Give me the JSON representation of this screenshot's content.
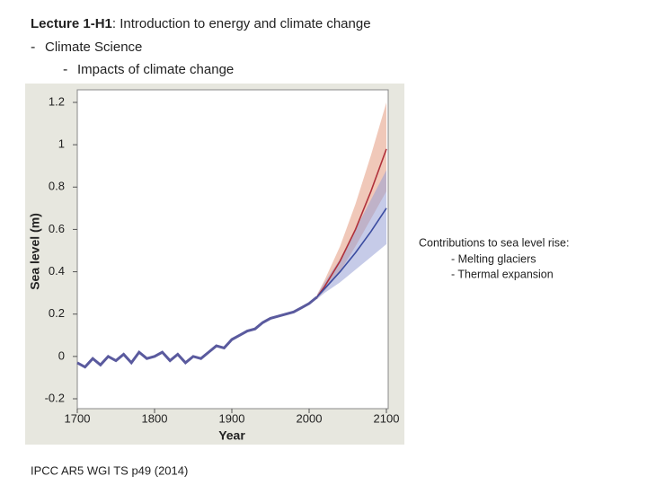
{
  "slide": {
    "title_bold": "Lecture 1-H1",
    "title_rest": ": Introduction to energy and climate change",
    "bullets": [
      {
        "marker": "-",
        "text": "Climate Science"
      },
      {
        "marker": "-",
        "text": "Impacts of climate change"
      }
    ],
    "note": [
      "Contributions to sea level rise:",
      "- Melting glaciers",
      "- Thermal expansion"
    ],
    "citation": "IPCC AR5 WGI TS p49 (2014)"
  },
  "chart_data": {
    "type": "line",
    "x_label": "Year",
    "y_label": "Sea  level (m)",
    "xlim": [
      1700,
      2100
    ],
    "ylim": [
      -0.2,
      1.2
    ],
    "xticks": [
      1700,
      1800,
      1900,
      2000,
      2100
    ],
    "yticks": [
      -0.2,
      0,
      0.2,
      0.4,
      0.6,
      0.8,
      1,
      1.2
    ],
    "series": [
      {
        "color": "#5a5a9e",
        "x": [
          1700,
          1710,
          1720,
          1730,
          1740,
          1750,
          1760,
          1770,
          1780,
          1790,
          1800,
          1810,
          1820,
          1830,
          1840,
          1850,
          1860,
          1870,
          1880,
          1890,
          1900,
          1910,
          1920,
          1930,
          1940,
          1950,
          1960,
          1970,
          1980,
          1990,
          2000,
          2010
        ],
        "values": [
          -0.03,
          -0.05,
          -0.01,
          -0.04,
          0,
          -0.02,
          0.01,
          -0.03,
          0.02,
          -0.01,
          0,
          0.02,
          -0.02,
          0.01,
          -0.03,
          0,
          -0.01,
          0.02,
          0.05,
          0.04,
          0.08,
          0.1,
          0.12,
          0.13,
          0.16,
          0.18,
          0.19,
          0.2,
          0.21,
          0.23,
          0.25,
          0.28
        ]
      },
      {
        "color": "#b0303a",
        "band_color": "#e39a80",
        "x": [
          2010,
          2020,
          2040,
          2060,
          2080,
          2100
        ],
        "values": [
          0.28,
          0.33,
          0.45,
          0.6,
          0.78,
          0.98
        ],
        "upper": [
          0.29,
          0.36,
          0.52,
          0.72,
          0.95,
          1.2
        ],
        "lower": [
          0.27,
          0.31,
          0.4,
          0.52,
          0.65,
          0.78
        ]
      },
      {
        "color": "#3b4ca0",
        "band_color": "#98a0d6",
        "x": [
          2010,
          2020,
          2040,
          2060,
          2080,
          2100
        ],
        "values": [
          0.28,
          0.32,
          0.4,
          0.49,
          0.59,
          0.7
        ],
        "upper": [
          0.29,
          0.35,
          0.46,
          0.6,
          0.74,
          0.88
        ],
        "lower": [
          0.27,
          0.3,
          0.35,
          0.41,
          0.47,
          0.53
        ]
      }
    ]
  }
}
